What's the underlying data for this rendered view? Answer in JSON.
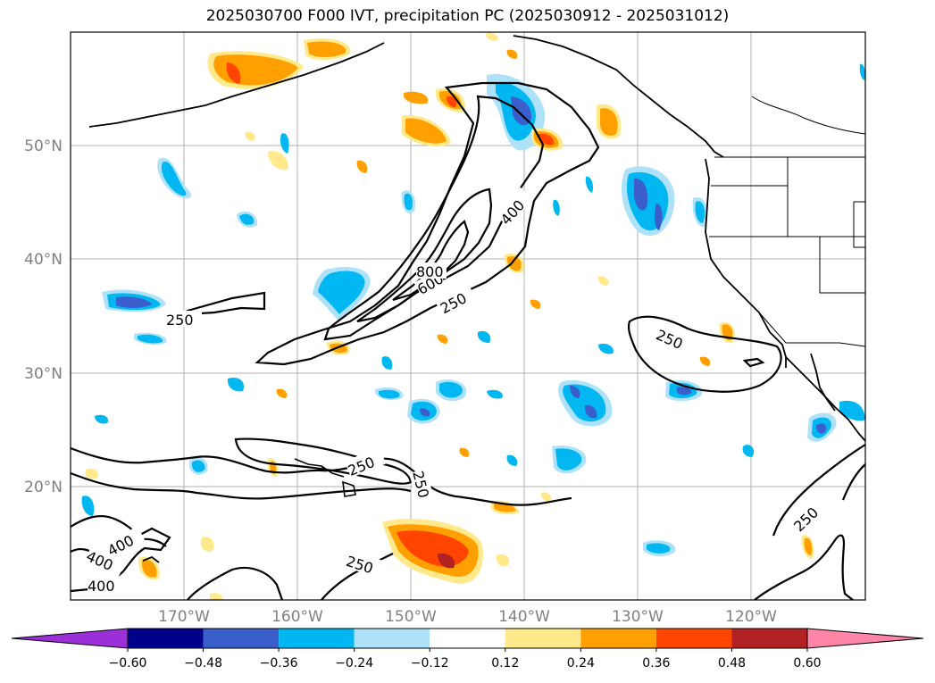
{
  "title": "2025030700 F000 IVT, precipitation PC (2025030912 - 2025031012)",
  "latitude_labels": [
    "50°N",
    "40°N",
    "30°N",
    "20°N"
  ],
  "longitude_labels": [
    "170°W",
    "160°W",
    "150°W",
    "140°W",
    "130°W",
    "120°W"
  ],
  "contour_labels": [
    "250",
    "250",
    "250",
    "250",
    "250",
    "400",
    "400",
    "400",
    "400",
    "600",
    "800",
    "250",
    "250"
  ],
  "colorbar": {
    "ticks": [
      "−0.60",
      "−0.48",
      "−0.36",
      "−0.24",
      "−0.12",
      "0.12",
      "0.24",
      "0.36",
      "0.48",
      "0.60"
    ],
    "colors": [
      "#9b30d9",
      "#00008b",
      "#3a5fcd",
      "#00b7f1",
      "#aee2fa",
      "#ffffff",
      "#ffe98a",
      "#ffa000",
      "#ff4500",
      "#b22222",
      "#ff85a8"
    ]
  },
  "colors": {
    "ivt_contour": "#000000",
    "coastline": "#000000",
    "grid": "#b0b0b0"
  }
}
